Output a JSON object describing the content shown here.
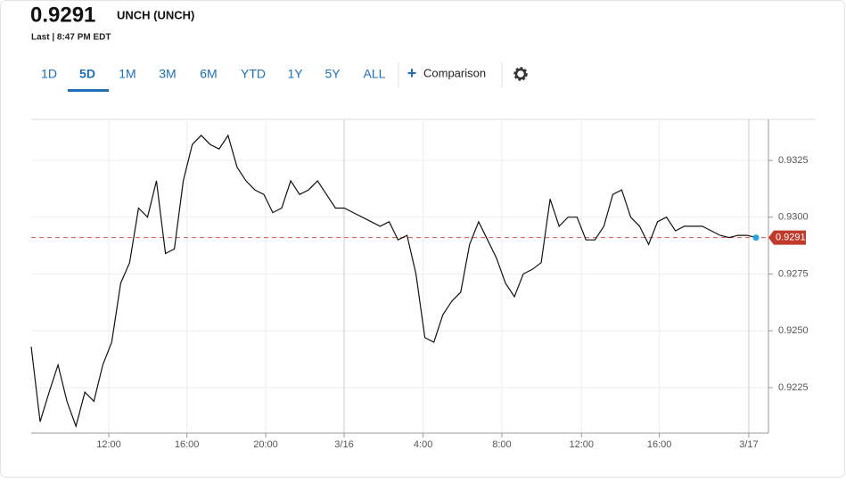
{
  "header": {
    "price": "0.9291",
    "symbol": "UNCH (UNCH)",
    "last": "Last | 8:47 PM EDT"
  },
  "tabs": [
    "1D",
    "5D",
    "1M",
    "3M",
    "6M",
    "YTD",
    "1Y",
    "5Y",
    "ALL"
  ],
  "active_tab": 1,
  "comparison": "Comparison",
  "chart_data": {
    "type": "line",
    "series": [
      {
        "color": "#111111",
        "values": [
          0.9243,
          0.921,
          0.9223,
          0.9235,
          0.9219,
          0.9208,
          0.9223,
          0.9219,
          0.9235,
          0.9245,
          0.9271,
          0.928,
          0.9304,
          0.93,
          0.9316,
          0.9284,
          0.9286,
          0.9316,
          0.9332,
          0.9336,
          0.9332,
          0.933,
          0.9336,
          0.9322,
          0.9316,
          0.9312,
          0.931,
          0.9302,
          0.9304,
          0.9316,
          0.931,
          0.9312,
          0.9316,
          0.931,
          0.9304,
          0.9304,
          0.9302,
          0.93,
          0.9298,
          0.9296,
          0.9298,
          0.929,
          0.9292,
          0.9275,
          0.9247,
          0.9245,
          0.9257,
          0.9263,
          0.9267,
          0.9288,
          0.9298,
          0.929,
          0.9282,
          0.9271,
          0.9265,
          0.9275,
          0.9277,
          0.928,
          0.9308,
          0.9296,
          0.93,
          0.93,
          0.929,
          0.929,
          0.9296,
          0.931,
          0.9312,
          0.93,
          0.9296,
          0.9288,
          0.9298,
          0.93,
          0.9294,
          0.9296,
          0.9296,
          0.9296,
          0.9294,
          0.9292,
          0.9291,
          0.9292,
          0.9292,
          0.9291
        ]
      }
    ],
    "xlim": [
      0,
      81
    ],
    "xticks": [
      {
        "value": 8.67,
        "label": "12:00"
      },
      {
        "value": 17.4,
        "label": "16:00"
      },
      {
        "value": 26.2,
        "label": "20:00"
      },
      {
        "value": 34.97,
        "label": "3/16"
      },
      {
        "value": 43.8,
        "label": "4:00"
      },
      {
        "value": 52.6,
        "label": "8:00"
      },
      {
        "value": 61.5,
        "label": "12:00"
      },
      {
        "value": 70.2,
        "label": "16:00"
      },
      {
        "value": 80.2,
        "label": "3/17"
      }
    ],
    "ylim": [
      0.9205,
      0.9343
    ],
    "yticks": [
      0.9225,
      0.925,
      0.9275,
      0.93,
      0.9325
    ],
    "ytick_labels": [
      "0.9225",
      "0.9250",
      "0.9275",
      "0.9300",
      "0.9325"
    ],
    "reference_line": {
      "value": 0.9291,
      "label": "0.9291",
      "color": "#d9534f"
    },
    "grid": true
  }
}
